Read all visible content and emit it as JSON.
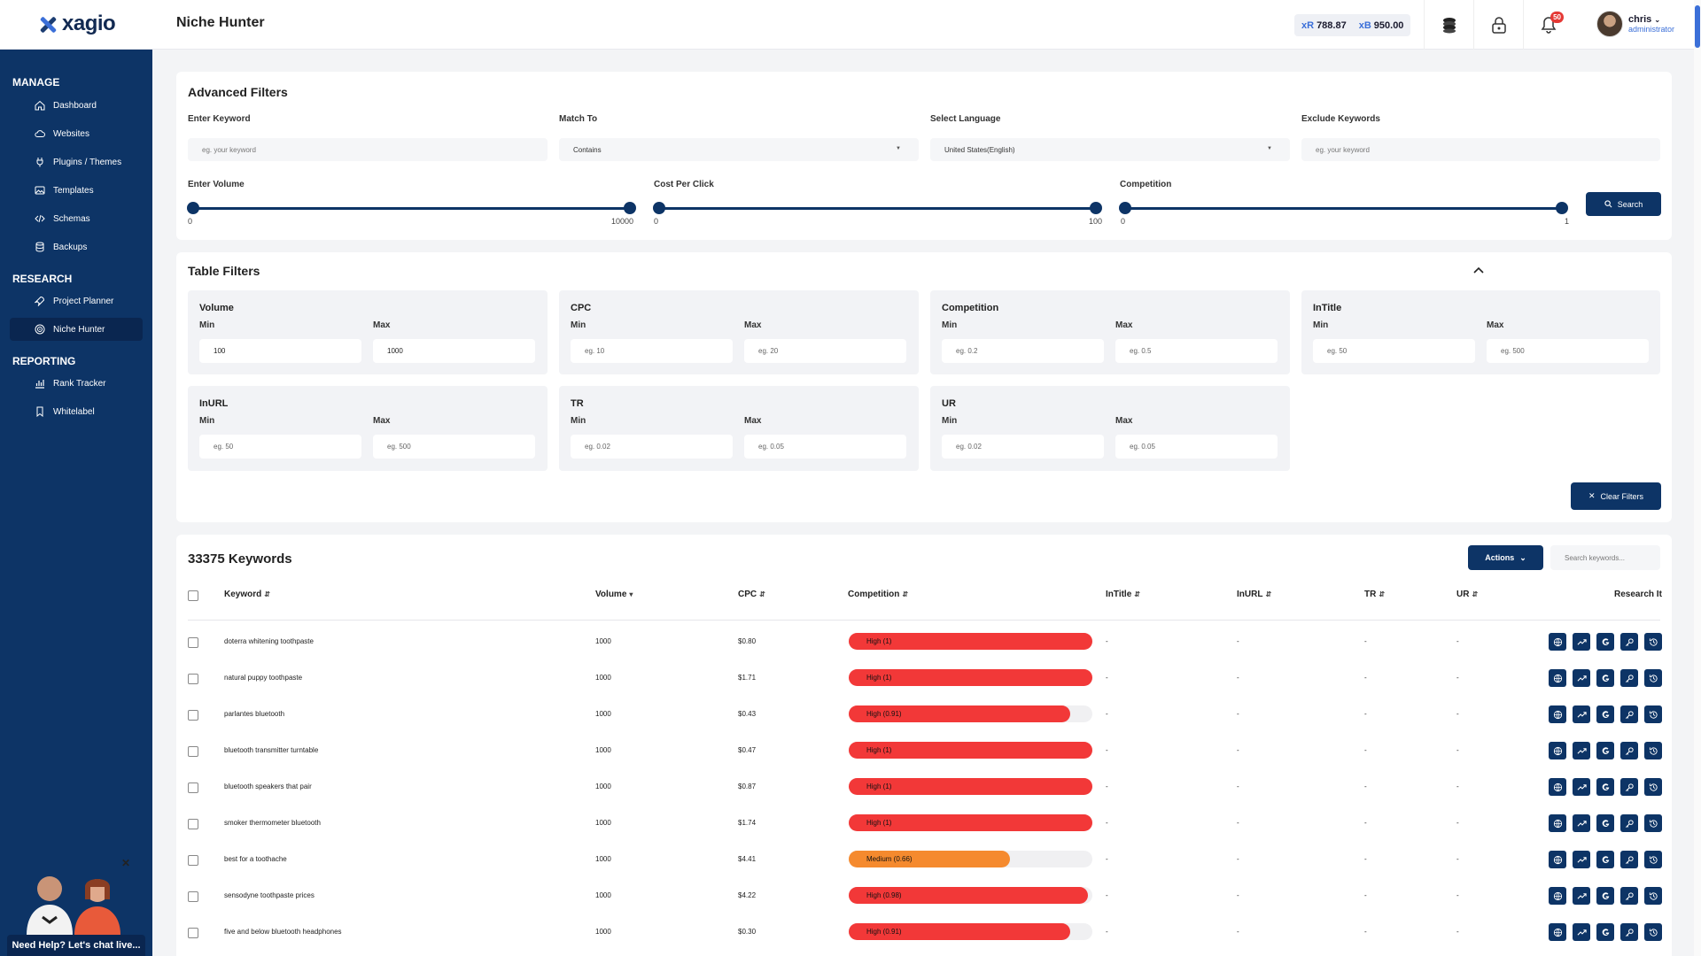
{
  "header": {
    "logo": "xagio",
    "page_title": "Niche Hunter",
    "credits": [
      {
        "currency": "xR",
        "amount": "788.87"
      },
      {
        "currency": "xB",
        "amount": "950.00"
      }
    ],
    "notifications": "50",
    "user": {
      "name": "chris",
      "role": "administrator"
    }
  },
  "sidebar": {
    "sections": [
      {
        "title": "MANAGE",
        "items": [
          {
            "label": "Dashboard",
            "icon": "home-icon"
          },
          {
            "label": "Websites",
            "icon": "cloud-icon"
          },
          {
            "label": "Plugins / Themes",
            "icon": "plug-icon"
          },
          {
            "label": "Templates",
            "icon": "image-icon"
          },
          {
            "label": "Schemas",
            "icon": "code-icon"
          },
          {
            "label": "Backups",
            "icon": "database-icon"
          }
        ]
      },
      {
        "title": "RESEARCH",
        "items": [
          {
            "label": "Project Planner",
            "icon": "rocket-icon"
          },
          {
            "label": "Niche Hunter",
            "icon": "target-icon",
            "active": true
          }
        ]
      },
      {
        "title": "REPORTING",
        "items": [
          {
            "label": "Rank Tracker",
            "icon": "chart-icon"
          },
          {
            "label": "Whitelabel",
            "icon": "bookmark-icon"
          }
        ]
      }
    ],
    "help_label": "Need Help? Let's chat live..."
  },
  "advanced_filters": {
    "title": "Advanced Filters",
    "keyword": {
      "label": "Enter Keyword",
      "placeholder": "eg. your keyword"
    },
    "match_to": {
      "label": "Match To",
      "value": "Contains"
    },
    "language": {
      "label": "Select Language",
      "value": "United States(English)"
    },
    "exclude": {
      "label": "Exclude Keywords",
      "placeholder": "eg. your keyword"
    },
    "volume": {
      "label": "Enter Volume",
      "min": "0",
      "max": "10000"
    },
    "cpc": {
      "label": "Cost Per Click",
      "min": "0",
      "max": "100"
    },
    "competition": {
      "label": "Competition",
      "min": "0",
      "max": "1"
    },
    "search_button": "Search"
  },
  "table_filters": {
    "title": "Table Filters",
    "min_label": "Min",
    "max_label": "Max",
    "groups": [
      {
        "title": "Volume",
        "min": "100",
        "max": "1000",
        "filled": true
      },
      {
        "title": "CPC",
        "min": "eg. 10",
        "max": "eg. 20"
      },
      {
        "title": "Competition",
        "min": "eg. 0.2",
        "max": "eg. 0.5"
      },
      {
        "title": "InTitle",
        "min": "eg. 50",
        "max": "eg. 500"
      },
      {
        "title": "InURL",
        "min": "eg. 50",
        "max": "eg. 500"
      },
      {
        "title": "TR",
        "min": "eg. 0.02",
        "max": "eg. 0.05"
      },
      {
        "title": "UR",
        "min": "eg. 0.02",
        "max": "eg. 0.05"
      }
    ],
    "clear_button": "Clear Filters"
  },
  "keywords": {
    "count_label": "33375 Keywords",
    "actions_label": "Actions",
    "search_placeholder": "Search keywords...",
    "columns": [
      "Keyword",
      "Volume",
      "CPC",
      "Competition",
      "InTitle",
      "InURL",
      "TR",
      "UR",
      "Research It"
    ],
    "rows": [
      {
        "keyword": "doterra whitening toothpaste",
        "volume": "1000",
        "cpc": "$0.80",
        "competition": "High (1)",
        "comp_value": 1,
        "level": "high",
        "intitle": "-",
        "inurl": "-",
        "tr": "-",
        "ur": "-"
      },
      {
        "keyword": "natural puppy toothpaste",
        "volume": "1000",
        "cpc": "$1.71",
        "competition": "High (1)",
        "comp_value": 1,
        "level": "high",
        "intitle": "-",
        "inurl": "-",
        "tr": "-",
        "ur": "-"
      },
      {
        "keyword": "parlantes bluetooth",
        "volume": "1000",
        "cpc": "$0.43",
        "competition": "High (0.91)",
        "comp_value": 0.91,
        "level": "high",
        "intitle": "-",
        "inurl": "-",
        "tr": "-",
        "ur": "-"
      },
      {
        "keyword": "bluetooth transmitter turntable",
        "volume": "1000",
        "cpc": "$0.47",
        "competition": "High (1)",
        "comp_value": 1,
        "level": "high",
        "intitle": "-",
        "inurl": "-",
        "tr": "-",
        "ur": "-"
      },
      {
        "keyword": "bluetooth speakers that pair",
        "volume": "1000",
        "cpc": "$0.87",
        "competition": "High (1)",
        "comp_value": 1,
        "level": "high",
        "intitle": "-",
        "inurl": "-",
        "tr": "-",
        "ur": "-"
      },
      {
        "keyword": "smoker thermometer bluetooth",
        "volume": "1000",
        "cpc": "$1.74",
        "competition": "High (1)",
        "comp_value": 1,
        "level": "high",
        "intitle": "-",
        "inurl": "-",
        "tr": "-",
        "ur": "-"
      },
      {
        "keyword": "best for a toothache",
        "volume": "1000",
        "cpc": "$4.41",
        "competition": "Medium (0.66)",
        "comp_value": 0.66,
        "level": "medium",
        "intitle": "-",
        "inurl": "-",
        "tr": "-",
        "ur": "-"
      },
      {
        "keyword": "sensodyne toothpaste prices",
        "volume": "1000",
        "cpc": "$4.22",
        "competition": "High (0.98)",
        "comp_value": 0.98,
        "level": "high",
        "intitle": "-",
        "inurl": "-",
        "tr": "-",
        "ur": "-"
      },
      {
        "keyword": "five and below bluetooth headphones",
        "volume": "1000",
        "cpc": "$0.30",
        "competition": "High (0.91)",
        "comp_value": 0.91,
        "level": "high",
        "intitle": "-",
        "inurl": "-",
        "tr": "-",
        "ur": "-"
      }
    ],
    "research_icons": [
      "globe-icon",
      "trending-icon",
      "google-icon",
      "key-icon",
      "history-icon"
    ]
  },
  "colors": {
    "primary": "#0d3466",
    "accent": "#3b6fd8",
    "high": "#f23838",
    "medium": "#f58a2e"
  }
}
